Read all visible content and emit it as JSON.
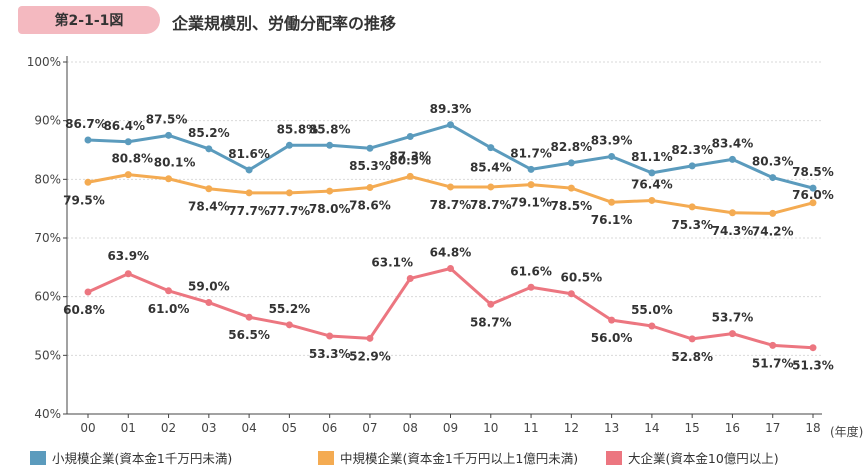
{
  "header": {
    "badge": "第2-1-1図",
    "title": "企業規模別、労働分配率の推移"
  },
  "chart_data": {
    "type": "line",
    "title": "企業規模別、労働分配率の推移",
    "xlabel": "(年度)",
    "ylabel": "",
    "ylim": [
      40,
      100
    ],
    "yticks": [
      "40%",
      "50%",
      "60%",
      "70%",
      "80%",
      "90%",
      "100%"
    ],
    "categories": [
      "00",
      "01",
      "02",
      "03",
      "04",
      "05",
      "06",
      "07",
      "08",
      "09",
      "10",
      "11",
      "12",
      "13",
      "14",
      "15",
      "16",
      "17",
      "18"
    ],
    "legend_position": "bottom",
    "series": [
      {
        "name": "小規模企業(資本金1千万円未満)",
        "color": "#5b9bbd",
        "values": [
          86.7,
          86.4,
          87.5,
          85.2,
          81.6,
          85.8,
          85.8,
          85.3,
          87.3,
          89.3,
          85.4,
          81.7,
          82.8,
          83.9,
          81.1,
          82.3,
          83.4,
          80.3,
          78.5
        ],
        "labels": [
          "86.7%",
          "86.4%",
          "87.5%",
          "85.2%",
          "81.6%",
          "85.8%",
          "85.8%",
          "85.3%",
          "87.3%",
          "89.3%",
          "85.4%",
          "81.7%",
          "82.8%",
          "83.9%",
          "81.1%",
          "82.3%",
          "83.4%",
          "80.3%",
          "78.5%"
        ]
      },
      {
        "name": "中規模企業(資本金1千万円以上1億円未満)",
        "color": "#f4ab52",
        "values": [
          79.5,
          80.8,
          80.1,
          78.4,
          77.7,
          77.7,
          78.0,
          78.6,
          80.5,
          78.7,
          78.7,
          79.1,
          78.5,
          76.1,
          76.4,
          75.3,
          74.3,
          74.2,
          76.0
        ],
        "labels": [
          "79.5%",
          "80.8%",
          "80.1%",
          "78.4%",
          "77.7%",
          "77.7%",
          "78.0%",
          "78.6%",
          "80.5%",
          "78.7%",
          "78.7%",
          "79.1%",
          "78.5%",
          "76.1%",
          "76.4%",
          "75.3%",
          "74.3%",
          "74.2%",
          "76.0%"
        ]
      },
      {
        "name": "大企業(資本金10億円以上)",
        "color": "#ec7680",
        "values": [
          60.8,
          63.9,
          61.0,
          59.0,
          56.5,
          55.2,
          53.3,
          52.9,
          63.1,
          64.8,
          58.7,
          61.6,
          60.5,
          56.0,
          55.0,
          52.8,
          53.7,
          51.7,
          51.3
        ],
        "labels": [
          "60.8%",
          "63.9%",
          "61.0%",
          "59.0%",
          "56.5%",
          "55.2%",
          "53.3%",
          "52.9%",
          "63.1%",
          "64.8%",
          "58.7%",
          "61.6%",
          "60.5%",
          "56.0%",
          "55.0%",
          "52.8%",
          "53.7%",
          "51.7%",
          "51.3%"
        ]
      }
    ]
  }
}
